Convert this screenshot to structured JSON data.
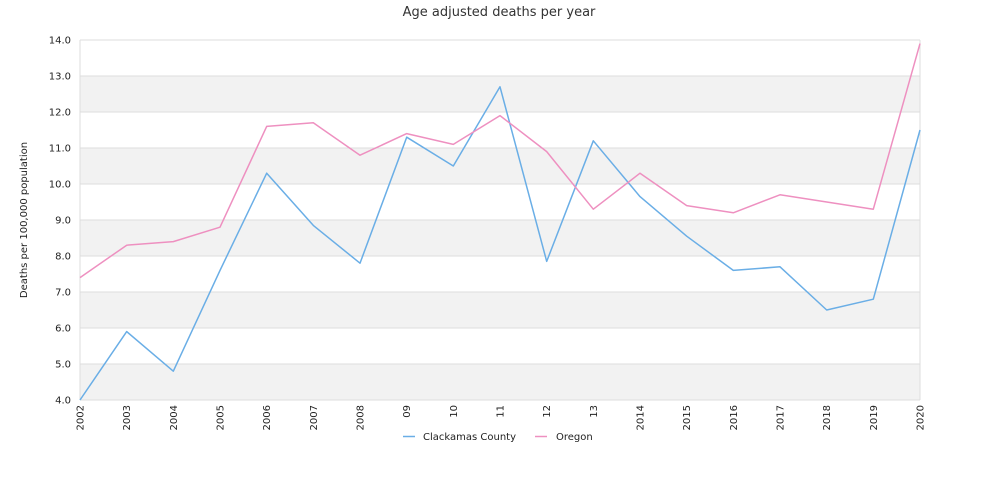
{
  "chart_data": {
    "type": "line",
    "title": "Age adjusted deaths per year",
    "xlabel": "",
    "ylabel": "Deaths per 100,000 population",
    "categories": [
      "2002",
      "2003",
      "2004",
      "2005",
      "2006",
      "2007",
      "2008",
      "09",
      "10",
      "11",
      "12",
      "13",
      "2014",
      "2015",
      "2016",
      "2017",
      "2018",
      "2019",
      "2020"
    ],
    "ylim": [
      4.0,
      14.0
    ],
    "yticks": [
      "4.0",
      "5.0",
      "6.0",
      "7.0",
      "8.0",
      "9.0",
      "10.0",
      "11.0",
      "12.0",
      "13.0",
      "14.0"
    ],
    "series": [
      {
        "name": "Clackamas County",
        "color": "#6aaee6",
        "values": [
          4.0,
          5.9,
          4.8,
          7.6,
          10.3,
          8.85,
          7.8,
          11.3,
          10.5,
          12.7,
          7.85,
          11.2,
          9.65,
          8.55,
          7.6,
          7.7,
          6.5,
          6.8,
          11.5
        ]
      },
      {
        "name": "Oregon",
        "color": "#ee90c0",
        "values": [
          7.4,
          8.3,
          8.4,
          8.8,
          11.6,
          11.7,
          10.8,
          11.4,
          11.1,
          11.9,
          10.9,
          9.3,
          10.3,
          9.4,
          9.2,
          9.7,
          9.5,
          9.3,
          13.9
        ]
      }
    ],
    "grid": true,
    "legend": "bottom"
  }
}
